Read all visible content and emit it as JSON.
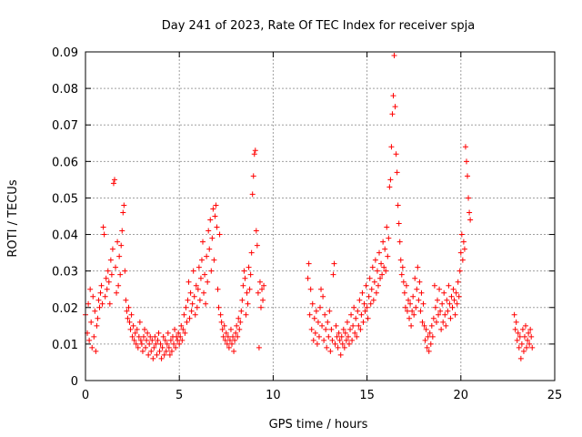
{
  "chart_data": {
    "type": "scatter",
    "title": "Day 241 of 2023, Rate Of TEC Index for receiver spja",
    "xlabel": "GPS time / hours",
    "ylabel": "ROTI / TECUs",
    "xlim": [
      0,
      25
    ],
    "ylim": [
      0,
      0.09
    ],
    "x_ticks": [
      0,
      5,
      10,
      15,
      20,
      25
    ],
    "x_tick_labels": [
      "0",
      "5",
      "10",
      "15",
      "20",
      "25"
    ],
    "y_ticks": [
      0,
      0.01,
      0.02,
      0.03,
      0.04,
      0.05,
      0.06,
      0.07,
      0.08,
      0.09
    ],
    "y_tick_labels": [
      "0",
      "0.01",
      "0.02",
      "0.03",
      "0.04",
      "0.05",
      "0.06",
      "0.07",
      "0.08",
      "0.09"
    ],
    "grid": true,
    "marker": "+",
    "marker_color": "#ff0000",
    "points": [
      [
        0.0,
        0.018
      ],
      [
        0.1,
        0.013
      ],
      [
        0.15,
        0.021
      ],
      [
        0.2,
        0.011
      ],
      [
        0.25,
        0.025
      ],
      [
        0.3,
        0.016
      ],
      [
        0.35,
        0.009
      ],
      [
        0.4,
        0.023
      ],
      [
        0.45,
        0.012
      ],
      [
        0.5,
        0.019
      ],
      [
        0.55,
        0.008
      ],
      [
        0.6,
        0.015
      ],
      [
        0.65,
        0.017
      ],
      [
        0.7,
        0.022
      ],
      [
        0.75,
        0.02
      ],
      [
        0.8,
        0.024
      ],
      [
        0.85,
        0.026
      ],
      [
        0.9,
        0.021
      ],
      [
        0.95,
        0.042
      ],
      [
        1.0,
        0.04
      ],
      [
        1.05,
        0.023
      ],
      [
        1.1,
        0.028
      ],
      [
        1.15,
        0.025
      ],
      [
        1.2,
        0.03
      ],
      [
        1.25,
        0.027
      ],
      [
        1.3,
        0.021
      ],
      [
        1.35,
        0.033
      ],
      [
        1.4,
        0.029
      ],
      [
        1.45,
        0.036
      ],
      [
        1.5,
        0.054
      ],
      [
        1.55,
        0.055
      ],
      [
        1.6,
        0.031
      ],
      [
        1.65,
        0.024
      ],
      [
        1.7,
        0.038
      ],
      [
        1.75,
        0.026
      ],
      [
        1.8,
        0.034
      ],
      [
        1.85,
        0.029
      ],
      [
        1.9,
        0.037
      ],
      [
        1.95,
        0.041
      ],
      [
        2.0,
        0.046
      ],
      [
        2.05,
        0.048
      ],
      [
        2.1,
        0.03
      ],
      [
        2.15,
        0.022
      ],
      [
        2.2,
        0.019
      ],
      [
        2.25,
        0.017
      ],
      [
        2.3,
        0.02
      ],
      [
        2.35,
        0.016
      ],
      [
        2.4,
        0.014
      ],
      [
        2.45,
        0.018
      ],
      [
        2.5,
        0.012
      ],
      [
        2.55,
        0.015
      ],
      [
        2.6,
        0.011
      ],
      [
        2.65,
        0.013
      ],
      [
        2.7,
        0.01
      ],
      [
        2.75,
        0.014
      ],
      [
        2.8,
        0.009
      ],
      [
        2.85,
        0.012
      ],
      [
        2.9,
        0.016
      ],
      [
        2.95,
        0.011
      ],
      [
        3.0,
        0.01
      ],
      [
        3.05,
        0.008
      ],
      [
        3.1,
        0.012
      ],
      [
        3.15,
        0.014
      ],
      [
        3.2,
        0.009
      ],
      [
        3.25,
        0.011
      ],
      [
        3.3,
        0.013
      ],
      [
        3.35,
        0.007
      ],
      [
        3.4,
        0.01
      ],
      [
        3.45,
        0.012
      ],
      [
        3.5,
        0.008
      ],
      [
        3.55,
        0.011
      ],
      [
        3.6,
        0.006
      ],
      [
        3.65,
        0.009
      ],
      [
        3.7,
        0.012
      ],
      [
        3.75,
        0.01
      ],
      [
        3.8,
        0.007
      ],
      [
        3.85,
        0.011
      ],
      [
        3.9,
        0.013
      ],
      [
        3.95,
        0.008
      ],
      [
        4.0,
        0.01
      ],
      [
        4.05,
        0.006
      ],
      [
        4.1,
        0.009
      ],
      [
        4.15,
        0.012
      ],
      [
        4.2,
        0.007
      ],
      [
        4.25,
        0.011
      ],
      [
        4.3,
        0.008
      ],
      [
        4.35,
        0.01
      ],
      [
        4.4,
        0.013
      ],
      [
        4.45,
        0.009
      ],
      [
        4.5,
        0.007
      ],
      [
        4.55,
        0.011
      ],
      [
        4.6,
        0.008
      ],
      [
        4.65,
        0.012
      ],
      [
        4.7,
        0.01
      ],
      [
        4.75,
        0.014
      ],
      [
        4.8,
        0.009
      ],
      [
        4.85,
        0.012
      ],
      [
        4.9,
        0.011
      ],
      [
        4.95,
        0.013
      ],
      [
        5.0,
        0.01
      ],
      [
        5.05,
        0.012
      ],
      [
        5.1,
        0.015
      ],
      [
        5.15,
        0.011
      ],
      [
        5.2,
        0.014
      ],
      [
        5.25,
        0.018
      ],
      [
        5.3,
        0.013
      ],
      [
        5.35,
        0.02
      ],
      [
        5.4,
        0.016
      ],
      [
        5.45,
        0.022
      ],
      [
        5.5,
        0.027
      ],
      [
        5.55,
        0.017
      ],
      [
        5.6,
        0.024
      ],
      [
        5.65,
        0.019
      ],
      [
        5.7,
        0.021
      ],
      [
        5.75,
        0.03
      ],
      [
        5.8,
        0.023
      ],
      [
        5.85,
        0.018
      ],
      [
        5.9,
        0.026
      ],
      [
        5.95,
        0.02
      ],
      [
        6.0,
        0.025
      ],
      [
        6.05,
        0.031
      ],
      [
        6.1,
        0.022
      ],
      [
        6.15,
        0.028
      ],
      [
        6.2,
        0.033
      ],
      [
        6.25,
        0.038
      ],
      [
        6.3,
        0.024
      ],
      [
        6.35,
        0.029
      ],
      [
        6.4,
        0.021
      ],
      [
        6.45,
        0.034
      ],
      [
        6.5,
        0.027
      ],
      [
        6.55,
        0.041
      ],
      [
        6.6,
        0.036
      ],
      [
        6.65,
        0.044
      ],
      [
        6.7,
        0.03
      ],
      [
        6.75,
        0.039
      ],
      [
        6.8,
        0.047
      ],
      [
        6.85,
        0.033
      ],
      [
        6.9,
        0.045
      ],
      [
        6.95,
        0.048
      ],
      [
        7.0,
        0.042
      ],
      [
        7.05,
        0.025
      ],
      [
        7.1,
        0.02
      ],
      [
        7.15,
        0.04
      ],
      [
        7.2,
        0.018
      ],
      [
        7.25,
        0.016
      ],
      [
        7.3,
        0.014
      ],
      [
        7.35,
        0.012
      ],
      [
        7.4,
        0.015
      ],
      [
        7.45,
        0.011
      ],
      [
        7.5,
        0.013
      ],
      [
        7.55,
        0.01
      ],
      [
        7.6,
        0.012
      ],
      [
        7.65,
        0.009
      ],
      [
        7.7,
        0.011
      ],
      [
        7.75,
        0.014
      ],
      [
        7.8,
        0.01
      ],
      [
        7.85,
        0.012
      ],
      [
        7.9,
        0.008
      ],
      [
        7.95,
        0.011
      ],
      [
        8.0,
        0.013
      ],
      [
        8.05,
        0.015
      ],
      [
        8.1,
        0.012
      ],
      [
        8.15,
        0.017
      ],
      [
        8.2,
        0.014
      ],
      [
        8.25,
        0.016
      ],
      [
        8.3,
        0.019
      ],
      [
        8.35,
        0.022
      ],
      [
        8.4,
        0.026
      ],
      [
        8.45,
        0.03
      ],
      [
        8.5,
        0.028
      ],
      [
        8.55,
        0.018
      ],
      [
        8.6,
        0.024
      ],
      [
        8.65,
        0.021
      ],
      [
        8.7,
        0.031
      ],
      [
        8.75,
        0.025
      ],
      [
        8.8,
        0.029
      ],
      [
        8.85,
        0.035
      ],
      [
        8.9,
        0.051
      ],
      [
        8.95,
        0.056
      ],
      [
        9.0,
        0.062
      ],
      [
        9.05,
        0.063
      ],
      [
        9.1,
        0.041
      ],
      [
        9.15,
        0.037
      ],
      [
        9.2,
        0.024
      ],
      [
        9.25,
        0.009
      ],
      [
        9.3,
        0.027
      ],
      [
        9.35,
        0.02
      ],
      [
        9.4,
        0.025
      ],
      [
        9.45,
        0.022
      ],
      [
        9.5,
        0.026
      ],
      [
        11.85,
        0.028
      ],
      [
        11.9,
        0.032
      ],
      [
        11.95,
        0.018
      ],
      [
        12.0,
        0.025
      ],
      [
        12.05,
        0.014
      ],
      [
        12.1,
        0.021
      ],
      [
        12.15,
        0.011
      ],
      [
        12.2,
        0.017
      ],
      [
        12.25,
        0.013
      ],
      [
        12.3,
        0.019
      ],
      [
        12.35,
        0.01
      ],
      [
        12.4,
        0.016
      ],
      [
        12.45,
        0.012
      ],
      [
        12.5,
        0.02
      ],
      [
        12.55,
        0.025
      ],
      [
        12.6,
        0.015
      ],
      [
        12.65,
        0.023
      ],
      [
        12.7,
        0.011
      ],
      [
        12.75,
        0.018
      ],
      [
        12.8,
        0.014
      ],
      [
        12.85,
        0.009
      ],
      [
        12.9,
        0.016
      ],
      [
        12.95,
        0.012
      ],
      [
        13.0,
        0.019
      ],
      [
        13.05,
        0.008
      ],
      [
        13.1,
        0.014
      ],
      [
        13.15,
        0.011
      ],
      [
        13.2,
        0.029
      ],
      [
        13.25,
        0.032
      ],
      [
        13.3,
        0.01
      ],
      [
        13.35,
        0.015
      ],
      [
        13.4,
        0.012
      ],
      [
        13.45,
        0.009
      ],
      [
        13.5,
        0.013
      ],
      [
        13.55,
        0.011
      ],
      [
        13.6,
        0.007
      ],
      [
        13.65,
        0.012
      ],
      [
        13.7,
        0.01
      ],
      [
        13.75,
        0.014
      ],
      [
        13.8,
        0.009
      ],
      [
        13.85,
        0.013
      ],
      [
        13.9,
        0.011
      ],
      [
        13.95,
        0.016
      ],
      [
        14.0,
        0.012
      ],
      [
        14.05,
        0.01
      ],
      [
        14.1,
        0.014
      ],
      [
        14.15,
        0.018
      ],
      [
        14.2,
        0.011
      ],
      [
        14.25,
        0.015
      ],
      [
        14.3,
        0.02
      ],
      [
        14.35,
        0.013
      ],
      [
        14.4,
        0.017
      ],
      [
        14.45,
        0.012
      ],
      [
        14.5,
        0.019
      ],
      [
        14.55,
        0.015
      ],
      [
        14.6,
        0.022
      ],
      [
        14.65,
        0.014
      ],
      [
        14.7,
        0.018
      ],
      [
        14.75,
        0.024
      ],
      [
        14.8,
        0.016
      ],
      [
        14.85,
        0.021
      ],
      [
        14.9,
        0.019
      ],
      [
        14.95,
        0.026
      ],
      [
        15.0,
        0.02
      ],
      [
        15.05,
        0.017
      ],
      [
        15.1,
        0.023
      ],
      [
        15.15,
        0.028
      ],
      [
        15.2,
        0.021
      ],
      [
        15.25,
        0.025
      ],
      [
        15.3,
        0.031
      ],
      [
        15.35,
        0.022
      ],
      [
        15.4,
        0.027
      ],
      [
        15.45,
        0.033
      ],
      [
        15.5,
        0.024
      ],
      [
        15.55,
        0.03
      ],
      [
        15.6,
        0.026
      ],
      [
        15.65,
        0.035
      ],
      [
        15.7,
        0.028
      ],
      [
        15.75,
        0.032
      ],
      [
        15.8,
        0.029
      ],
      [
        15.85,
        0.038
      ],
      [
        15.9,
        0.031
      ],
      [
        15.95,
        0.036
      ],
      [
        16.0,
        0.03
      ],
      [
        16.05,
        0.042
      ],
      [
        16.1,
        0.034
      ],
      [
        16.15,
        0.039
      ],
      [
        16.2,
        0.053
      ],
      [
        16.25,
        0.055
      ],
      [
        16.3,
        0.064
      ],
      [
        16.35,
        0.073
      ],
      [
        16.4,
        0.078
      ],
      [
        16.45,
        0.089
      ],
      [
        16.5,
        0.075
      ],
      [
        16.55,
        0.062
      ],
      [
        16.6,
        0.057
      ],
      [
        16.65,
        0.048
      ],
      [
        16.7,
        0.043
      ],
      [
        16.75,
        0.038
      ],
      [
        16.8,
        0.033
      ],
      [
        16.85,
        0.029
      ],
      [
        16.9,
        0.031
      ],
      [
        16.95,
        0.027
      ],
      [
        17.0,
        0.024
      ],
      [
        17.05,
        0.02
      ],
      [
        17.1,
        0.026
      ],
      [
        17.15,
        0.019
      ],
      [
        17.2,
        0.022
      ],
      [
        17.25,
        0.017
      ],
      [
        17.3,
        0.021
      ],
      [
        17.35,
        0.015
      ],
      [
        17.4,
        0.019
      ],
      [
        17.45,
        0.023
      ],
      [
        17.5,
        0.018
      ],
      [
        17.55,
        0.028
      ],
      [
        17.6,
        0.02
      ],
      [
        17.65,
        0.025
      ],
      [
        17.7,
        0.031
      ],
      [
        17.75,
        0.022
      ],
      [
        17.8,
        0.027
      ],
      [
        17.85,
        0.019
      ],
      [
        17.9,
        0.024
      ],
      [
        17.95,
        0.016
      ],
      [
        18.0,
        0.021
      ],
      [
        18.05,
        0.015
      ],
      [
        18.1,
        0.011
      ],
      [
        18.15,
        0.014
      ],
      [
        18.2,
        0.009
      ],
      [
        18.25,
        0.012
      ],
      [
        18.3,
        0.008
      ],
      [
        18.35,
        0.013
      ],
      [
        18.4,
        0.01
      ],
      [
        18.45,
        0.015
      ],
      [
        18.5,
        0.012
      ],
      [
        18.55,
        0.017
      ],
      [
        18.6,
        0.026
      ],
      [
        18.65,
        0.02
      ],
      [
        18.7,
        0.016
      ],
      [
        18.75,
        0.022
      ],
      [
        18.8,
        0.018
      ],
      [
        18.85,
        0.025
      ],
      [
        18.9,
        0.019
      ],
      [
        18.95,
        0.014
      ],
      [
        19.0,
        0.021
      ],
      [
        19.05,
        0.016
      ],
      [
        19.1,
        0.024
      ],
      [
        19.15,
        0.018
      ],
      [
        19.2,
        0.015
      ],
      [
        19.25,
        0.022
      ],
      [
        19.3,
        0.019
      ],
      [
        19.35,
        0.026
      ],
      [
        19.4,
        0.021
      ],
      [
        19.45,
        0.017
      ],
      [
        19.5,
        0.023
      ],
      [
        19.55,
        0.02
      ],
      [
        19.6,
        0.025
      ],
      [
        19.65,
        0.022
      ],
      [
        19.7,
        0.018
      ],
      [
        19.75,
        0.024
      ],
      [
        19.8,
        0.021
      ],
      [
        19.85,
        0.027
      ],
      [
        19.9,
        0.023
      ],
      [
        19.95,
        0.03
      ],
      [
        20.0,
        0.035
      ],
      [
        20.05,
        0.04
      ],
      [
        20.1,
        0.033
      ],
      [
        20.15,
        0.038
      ],
      [
        20.2,
        0.036
      ],
      [
        20.25,
        0.064
      ],
      [
        20.3,
        0.06
      ],
      [
        20.35,
        0.056
      ],
      [
        20.4,
        0.05
      ],
      [
        20.45,
        0.046
      ],
      [
        20.5,
        0.044
      ],
      [
        22.85,
        0.018
      ],
      [
        22.9,
        0.014
      ],
      [
        22.95,
        0.016
      ],
      [
        23.0,
        0.011
      ],
      [
        23.05,
        0.013
      ],
      [
        23.1,
        0.009
      ],
      [
        23.15,
        0.012
      ],
      [
        23.2,
        0.006
      ],
      [
        23.25,
        0.01
      ],
      [
        23.3,
        0.014
      ],
      [
        23.35,
        0.008
      ],
      [
        23.4,
        0.012
      ],
      [
        23.45,
        0.015
      ],
      [
        23.5,
        0.009
      ],
      [
        23.55,
        0.011
      ],
      [
        23.6,
        0.013
      ],
      [
        23.65,
        0.01
      ],
      [
        23.7,
        0.014
      ],
      [
        23.75,
        0.012
      ],
      [
        23.8,
        0.009
      ]
    ]
  }
}
